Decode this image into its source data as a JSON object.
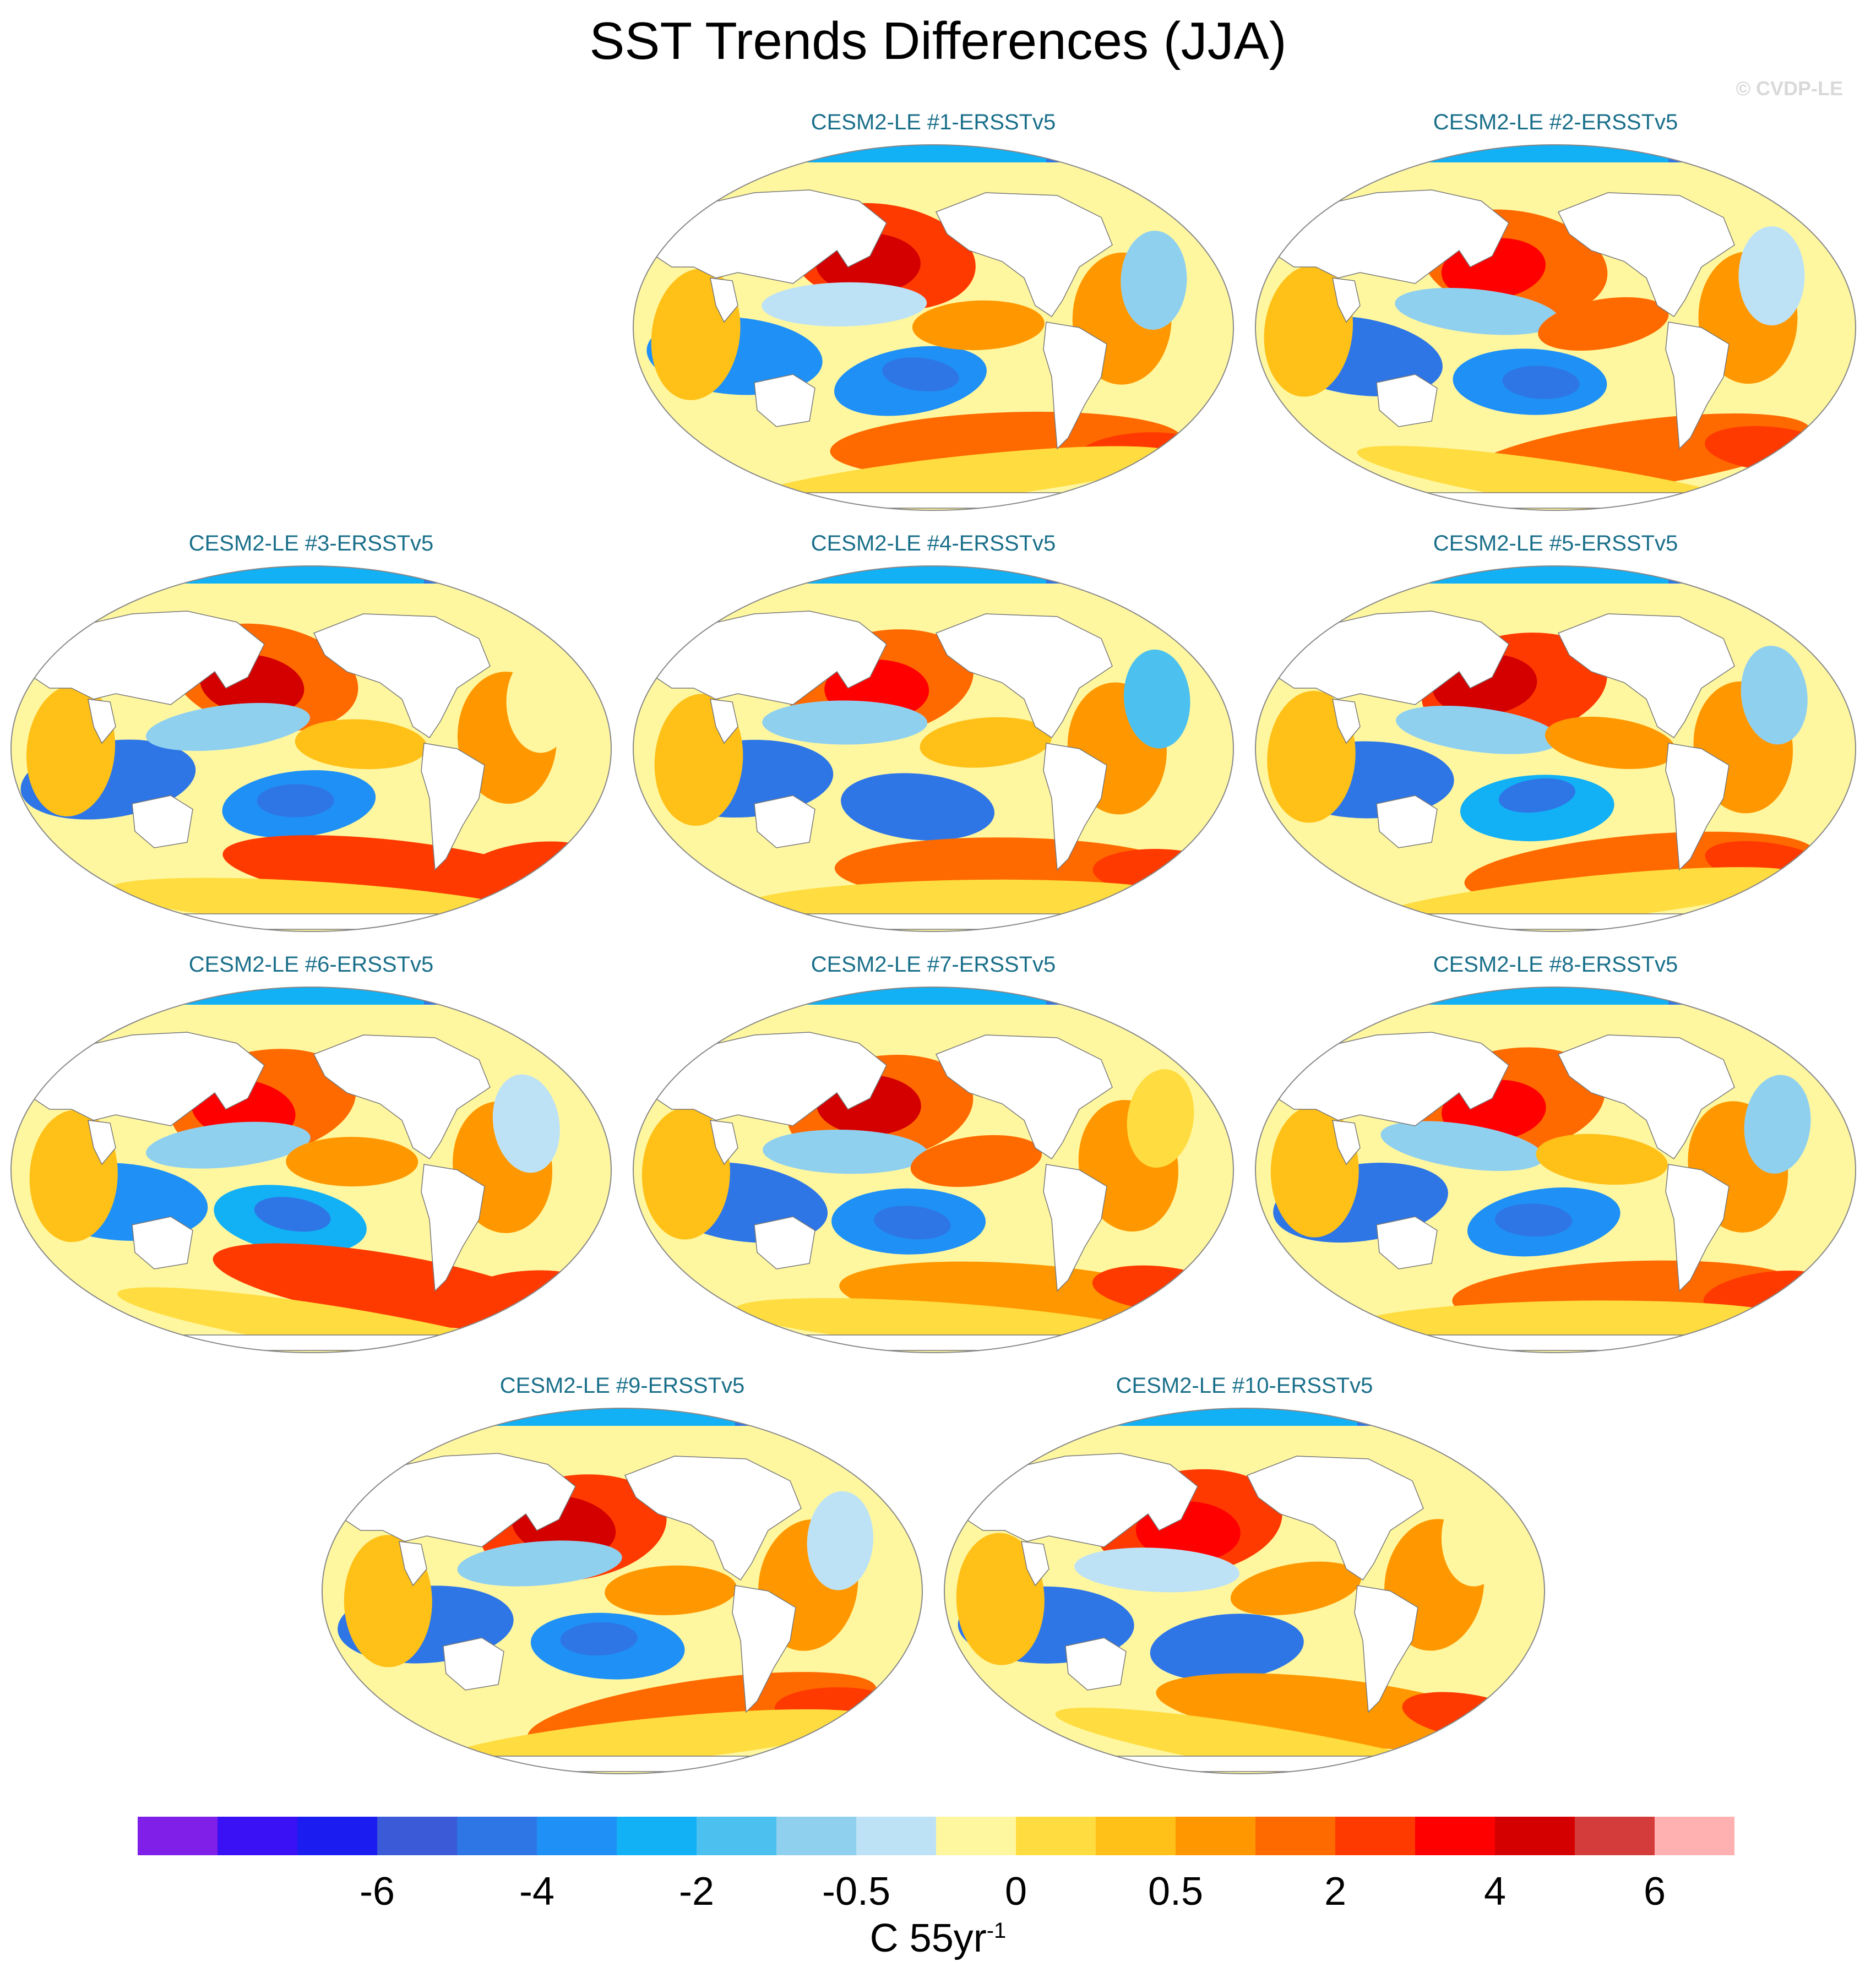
{
  "title": "SST Trends Differences (JJA)",
  "watermark": "© CVDP-LE",
  "panels": [
    {
      "label": "CESM2-LE #1-ERSSTv5"
    },
    {
      "label": "CESM2-LE #2-ERSSTv5"
    },
    {
      "label": "CESM2-LE #3-ERSSTv5"
    },
    {
      "label": "CESM2-LE #4-ERSSTv5"
    },
    {
      "label": "CESM2-LE #5-ERSSTv5"
    },
    {
      "label": "CESM2-LE #6-ERSSTv5"
    },
    {
      "label": "CESM2-LE #7-ERSSTv5"
    },
    {
      "label": "CESM2-LE #8-ERSSTv5"
    },
    {
      "label": "CESM2-LE #9-ERSSTv5"
    },
    {
      "label": "CESM2-LE #10-ERSSTv5"
    }
  ],
  "colorbar": {
    "colors": [
      "#7f1fe8",
      "#3a10f5",
      "#1a1cf0",
      "#3a5ad8",
      "#2e76e6",
      "#1f90f5",
      "#12b0f5",
      "#4cc0ee",
      "#90d0ef",
      "#bde2f5",
      "#fff7a0",
      "#ffdc40",
      "#ffc018",
      "#ff9800",
      "#ff6a00",
      "#ff3a00",
      "#ff0000",
      "#d40000",
      "#d43c3c",
      "#ffb0b0"
    ],
    "ticks": [
      "-6",
      "-4",
      "-2",
      "-0.5",
      "0",
      "0.5",
      "2",
      "4",
      "6"
    ],
    "units": "C 55yr",
    "units_exp": "-1"
  },
  "chart_data": {
    "type": "heatmap",
    "title": "SST Trends Differences (JJA)",
    "panels": [
      "CESM2-LE #1-ERSSTv5",
      "CESM2-LE #2-ERSSTv5",
      "CESM2-LE #3-ERSSTv5",
      "CESM2-LE #4-ERSSTv5",
      "CESM2-LE #5-ERSSTv5",
      "CESM2-LE #6-ERSSTv5",
      "CESM2-LE #7-ERSSTv5",
      "CESM2-LE #8-ERSSTv5",
      "CESM2-LE #9-ERSSTv5",
      "CESM2-LE #10-ERSSTv5"
    ],
    "colorbar_ticks": [
      -6,
      -4,
      -2,
      -0.5,
      0,
      0.5,
      2,
      4,
      6
    ],
    "units": "C 55yr^-1"
  }
}
